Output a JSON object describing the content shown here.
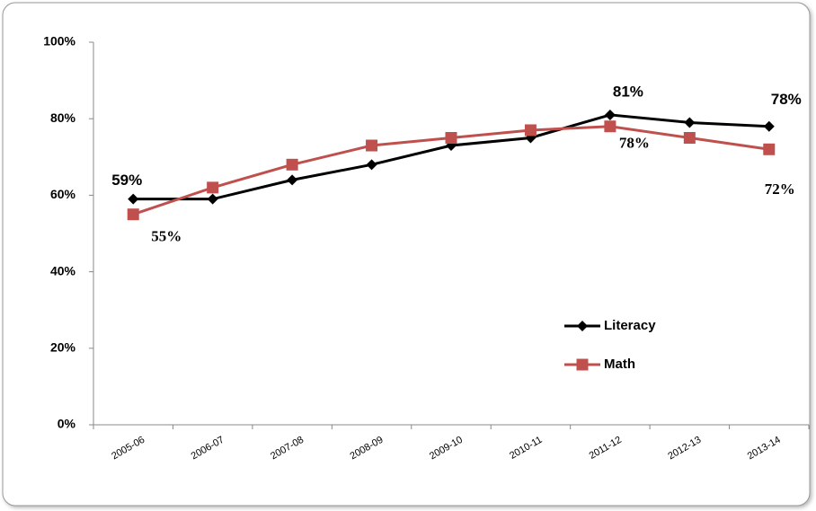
{
  "chart_data": {
    "type": "line",
    "categories": [
      "2005-06",
      "2006-07",
      "2007-08",
      "2008-09",
      "2009-10",
      "2010-11",
      "2011-12",
      "2012-13",
      "2013-14"
    ],
    "series": [
      {
        "name": "Literacy",
        "color": "#000000",
        "marker": "diamond",
        "values": [
          59,
          59,
          64,
          68,
          73,
          75,
          81,
          79,
          78
        ],
        "value_labels": [
          "59%",
          null,
          null,
          null,
          null,
          null,
          "81%",
          null,
          "78%"
        ]
      },
      {
        "name": "Math",
        "color": "#c0504d",
        "marker": "square",
        "values": [
          55,
          62,
          68,
          73,
          75,
          77,
          78,
          75,
          72
        ],
        "value_labels": [
          "55%",
          null,
          null,
          null,
          null,
          null,
          "78%",
          null,
          "72%"
        ]
      }
    ],
    "ylim": [
      0,
      100
    ],
    "yticks": [
      {
        "value": 0,
        "label": "0%"
      },
      {
        "value": 20,
        "label": "20%"
      },
      {
        "value": 40,
        "label": "40%"
      },
      {
        "value": 60,
        "label": "60%"
      },
      {
        "value": 80,
        "label": "80%"
      },
      {
        "value": 100,
        "label": "100%"
      }
    ],
    "grid": false,
    "legend": "right"
  }
}
